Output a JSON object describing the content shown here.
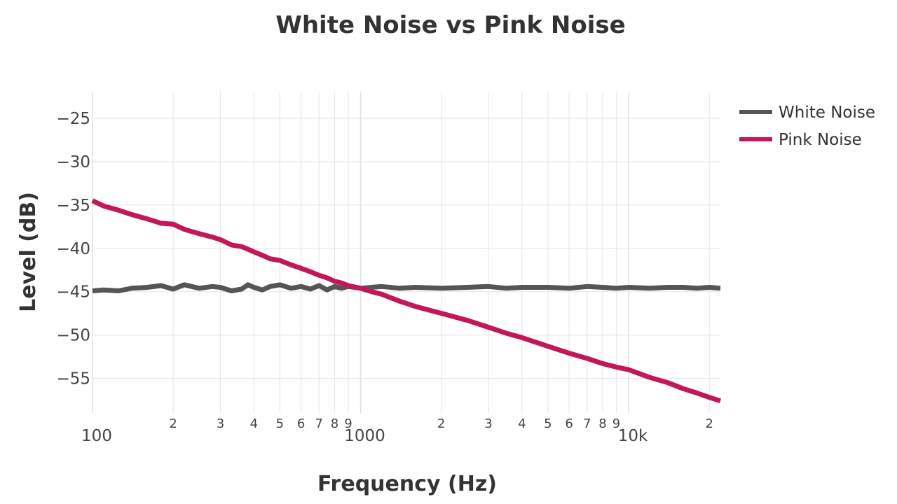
{
  "chart_data": {
    "type": "line",
    "title": "White Noise vs Pink Noise",
    "xlabel": "Frequency (Hz)",
    "ylabel": "Level (dB)",
    "x_scale": "log",
    "xlim": [
      100,
      22000
    ],
    "ylim": [
      -59,
      -22
    ],
    "x_major_ticks": [
      {
        "value": 100,
        "label": "100"
      },
      {
        "value": 1000,
        "label": "1000"
      },
      {
        "value": 10000,
        "label": "10k"
      }
    ],
    "x_minor_ticks": [
      {
        "value": 200,
        "label": "2"
      },
      {
        "value": 300,
        "label": "3"
      },
      {
        "value": 400,
        "label": "4"
      },
      {
        "value": 500,
        "label": "5"
      },
      {
        "value": 600,
        "label": "6"
      },
      {
        "value": 700,
        "label": "7"
      },
      {
        "value": 800,
        "label": "8"
      },
      {
        "value": 900,
        "label": "9"
      },
      {
        "value": 2000,
        "label": "2"
      },
      {
        "value": 3000,
        "label": "3"
      },
      {
        "value": 4000,
        "label": "4"
      },
      {
        "value": 5000,
        "label": "5"
      },
      {
        "value": 6000,
        "label": "6"
      },
      {
        "value": 7000,
        "label": "7"
      },
      {
        "value": 8000,
        "label": "8"
      },
      {
        "value": 9000,
        "label": "9"
      },
      {
        "value": 20000,
        "label": "2"
      }
    ],
    "y_ticks": [
      {
        "value": -25,
        "label": "−25"
      },
      {
        "value": -30,
        "label": "−30"
      },
      {
        "value": -35,
        "label": "−35"
      },
      {
        "value": -40,
        "label": "−40"
      },
      {
        "value": -45,
        "label": "−45"
      },
      {
        "value": -50,
        "label": "−50"
      },
      {
        "value": -55,
        "label": "−55"
      }
    ],
    "grid": true,
    "legend_position": "top-right",
    "series": [
      {
        "name": "White Noise",
        "color": "#555555",
        "x": [
          100,
          110,
          125,
          140,
          160,
          180,
          200,
          220,
          250,
          280,
          300,
          330,
          360,
          380,
          400,
          430,
          460,
          500,
          550,
          600,
          650,
          700,
          750,
          800,
          850,
          900,
          1000,
          1100,
          1200,
          1400,
          1600,
          2000,
          2500,
          3000,
          3500,
          4000,
          5000,
          6000,
          7000,
          8000,
          9000,
          10000,
          12000,
          14000,
          16000,
          18000,
          20000,
          22000
        ],
        "y": [
          -44.9,
          -44.8,
          -44.9,
          -44.6,
          -44.5,
          -44.3,
          -44.7,
          -44.2,
          -44.6,
          -44.4,
          -44.5,
          -44.9,
          -44.7,
          -44.2,
          -44.5,
          -44.8,
          -44.4,
          -44.2,
          -44.6,
          -44.4,
          -44.7,
          -44.3,
          -44.8,
          -44.4,
          -44.6,
          -44.4,
          -44.6,
          -44.5,
          -44.4,
          -44.6,
          -44.5,
          -44.6,
          -44.5,
          -44.4,
          -44.6,
          -44.5,
          -44.5,
          -44.6,
          -44.4,
          -44.5,
          -44.6,
          -44.5,
          -44.6,
          -44.5,
          -44.5,
          -44.6,
          -44.5,
          -44.6
        ]
      },
      {
        "name": "Pink Noise",
        "color": "#c2185b",
        "x": [
          100,
          110,
          125,
          140,
          160,
          180,
          200,
          220,
          250,
          280,
          300,
          330,
          360,
          380,
          400,
          430,
          460,
          500,
          550,
          600,
          650,
          700,
          750,
          800,
          850,
          900,
          1000,
          1100,
          1200,
          1400,
          1600,
          2000,
          2500,
          3000,
          3500,
          4000,
          5000,
          6000,
          7000,
          8000,
          9000,
          10000,
          12000,
          14000,
          16000,
          18000,
          20000,
          22000
        ],
        "y": [
          -34.5,
          -35.1,
          -35.6,
          -36.1,
          -36.6,
          -37.1,
          -37.2,
          -37.8,
          -38.3,
          -38.7,
          -39.0,
          -39.6,
          -39.8,
          -40.1,
          -40.4,
          -40.8,
          -41.2,
          -41.4,
          -41.9,
          -42.3,
          -42.7,
          -43.1,
          -43.4,
          -43.8,
          -44.0,
          -44.3,
          -44.6,
          -45.0,
          -45.3,
          -46.1,
          -46.7,
          -47.5,
          -48.3,
          -49.1,
          -49.8,
          -50.3,
          -51.3,
          -52.1,
          -52.7,
          -53.3,
          -53.7,
          -54.0,
          -54.9,
          -55.5,
          -56.2,
          -56.7,
          -57.2,
          -57.6
        ]
      }
    ]
  }
}
